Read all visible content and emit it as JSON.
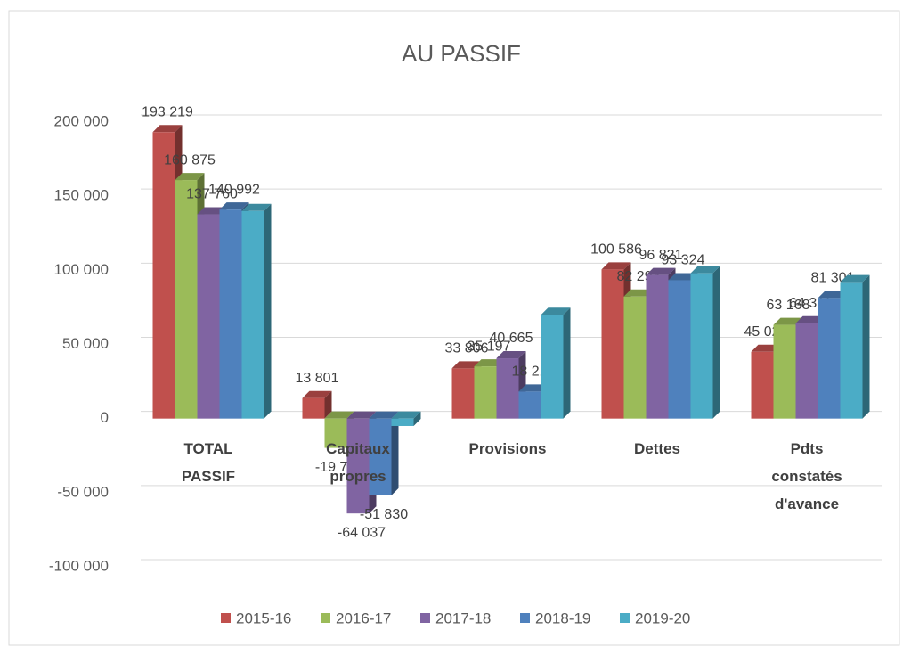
{
  "chart_data": {
    "type": "bar3d",
    "title": "AU PASSIF",
    "categories": [
      "TOTAL PASSIF",
      "Capitaux propres",
      "Provisions",
      "Dettes",
      "Pdts constatés d'avance"
    ],
    "series": [
      {
        "name": "2015-16",
        "color": "#c0504d",
        "values": [
          193219,
          13801,
          33806,
          100586,
          45026
        ],
        "value_labels": [
          "193 219",
          "13 801",
          "33 806",
          "100 586",
          "45 026"
        ]
      },
      {
        "name": "2016-17",
        "color": "#9bbb59",
        "values": [
          160875,
          -19783,
          35197,
          82293,
          63168
        ],
        "value_labels": [
          "160 875",
          "-19 783",
          "35 197",
          "82 293",
          "63 168"
        ]
      },
      {
        "name": "2017-18",
        "color": "#8064a2",
        "values": [
          137760,
          -64037,
          40665,
          96821,
          64311
        ],
        "value_labels": [
          "137 760",
          "-64 037",
          "40 665",
          "96 821",
          "64 311"
        ]
      },
      {
        "name": "2018-19",
        "color": "#4f81bd",
        "values": [
          140992,
          -51830,
          18218,
          93324,
          81301
        ],
        "value_labels": [
          "140 992",
          "-51 830",
          "18 218",
          "93 324",
          "81 301"
        ]
      },
      {
        "name": "2019-20",
        "color": "#4bacc6",
        "values": [
          140000,
          -5000,
          70000,
          98000,
          92000
        ]
      }
    ],
    "ylim": [
      -100000,
      200000
    ],
    "yticks": [
      {
        "value": -100000,
        "label": "-100 000"
      },
      {
        "value": -50000,
        "label": "-50 000"
      },
      0,
      {
        "value": 50000,
        "label": "50 000"
      },
      {
        "value": 100000,
        "label": "100 000"
      },
      {
        "value": 150000,
        "label": "150 000"
      },
      {
        "value": 200000,
        "label": "200 000"
      }
    ],
    "grid": true,
    "legend": "bottom"
  }
}
